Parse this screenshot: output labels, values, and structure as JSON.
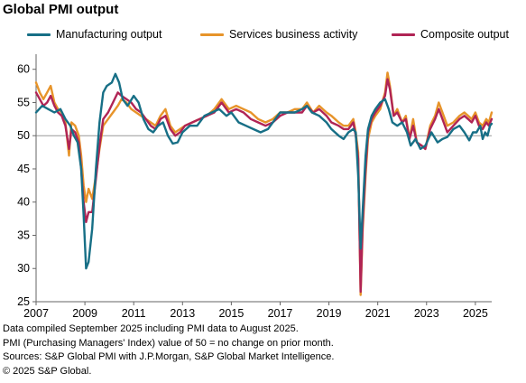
{
  "title": "Global PMI output",
  "footer": {
    "line1": "Data compiled September 2025 including PMI data to August 2025.",
    "line2": "PMI (Purchasing Managers' Index) value of 50 = no change on prior month.",
    "line3": "Sources: S&P Global PMI with J.P.Morgan, S&P Global Market Intelligence.",
    "line4": "© 2025 S&P Global."
  },
  "colors": {
    "manufacturing": "#176f86",
    "services": "#e7942a",
    "composite": "#b02455",
    "axis": "#666666",
    "refline": "#999999"
  },
  "chart_data": {
    "type": "line",
    "title": "Global PMI output",
    "xlabel": "",
    "ylabel": "",
    "xlim": [
      2007.0,
      2025.67
    ],
    "ylim": [
      25,
      62
    ],
    "yticks": [
      25,
      30,
      35,
      40,
      45,
      50,
      55,
      60
    ],
    "xticks": [
      "2007",
      "2009",
      "2011",
      "2013",
      "2015",
      "2017",
      "2019",
      "2021",
      "2023",
      "2025"
    ],
    "reference_line": 50,
    "grid": false,
    "legend_position": "top",
    "series": [
      {
        "name": "Manufacturing output",
        "color": "#176f86",
        "points": [
          [
            2007.0,
            53.5
          ],
          [
            2007.25,
            54.5
          ],
          [
            2007.5,
            54.0
          ],
          [
            2007.75,
            53.5
          ],
          [
            2008.0,
            54.0
          ],
          [
            2008.2,
            52.5
          ],
          [
            2008.4,
            51.5
          ],
          [
            2008.55,
            50.0
          ],
          [
            2008.7,
            49.0
          ],
          [
            2008.85,
            45.0
          ],
          [
            2008.95,
            38.0
          ],
          [
            2009.05,
            30.0
          ],
          [
            2009.15,
            31.0
          ],
          [
            2009.3,
            36.0
          ],
          [
            2009.45,
            45.0
          ],
          [
            2009.6,
            52.0
          ],
          [
            2009.75,
            56.5
          ],
          [
            2009.9,
            57.5
          ],
          [
            2010.1,
            58.0
          ],
          [
            2010.25,
            59.3
          ],
          [
            2010.4,
            58.0
          ],
          [
            2010.55,
            55.5
          ],
          [
            2010.75,
            54.5
          ],
          [
            2011.0,
            56.0
          ],
          [
            2011.2,
            55.0
          ],
          [
            2011.4,
            52.5
          ],
          [
            2011.6,
            51.0
          ],
          [
            2011.8,
            50.5
          ],
          [
            2012.0,
            51.5
          ],
          [
            2012.2,
            52.0
          ],
          [
            2012.4,
            50.0
          ],
          [
            2012.6,
            48.8
          ],
          [
            2012.8,
            49.0
          ],
          [
            2013.0,
            50.5
          ],
          [
            2013.3,
            51.5
          ],
          [
            2013.6,
            51.5
          ],
          [
            2013.9,
            53.0
          ],
          [
            2014.2,
            53.5
          ],
          [
            2014.5,
            54.0
          ],
          [
            2014.8,
            53.0
          ],
          [
            2015.0,
            53.5
          ],
          [
            2015.3,
            52.0
          ],
          [
            2015.6,
            51.5
          ],
          [
            2015.9,
            51.0
          ],
          [
            2016.2,
            50.5
          ],
          [
            2016.5,
            51.0
          ],
          [
            2016.8,
            52.5
          ],
          [
            2017.0,
            53.5
          ],
          [
            2017.3,
            53.5
          ],
          [
            2017.6,
            53.5
          ],
          [
            2017.9,
            54.0
          ],
          [
            2018.1,
            54.5
          ],
          [
            2018.3,
            53.5
          ],
          [
            2018.6,
            53.0
          ],
          [
            2018.9,
            52.0
          ],
          [
            2019.1,
            51.0
          ],
          [
            2019.4,
            50.0
          ],
          [
            2019.6,
            49.5
          ],
          [
            2019.8,
            50.5
          ],
          [
            2020.0,
            51.0
          ],
          [
            2020.1,
            50.5
          ],
          [
            2020.2,
            44.0
          ],
          [
            2020.3,
            33.0
          ],
          [
            2020.38,
            38.5
          ],
          [
            2020.5,
            47.0
          ],
          [
            2020.6,
            51.0
          ],
          [
            2020.75,
            53.0
          ],
          [
            2020.9,
            54.0
          ],
          [
            2021.1,
            55.0
          ],
          [
            2021.3,
            55.5
          ],
          [
            2021.45,
            54.0
          ],
          [
            2021.6,
            52.0
          ],
          [
            2021.8,
            51.5
          ],
          [
            2022.0,
            52.0
          ],
          [
            2022.2,
            50.5
          ],
          [
            2022.35,
            48.5
          ],
          [
            2022.55,
            49.5
          ],
          [
            2022.75,
            48.0
          ],
          [
            2022.95,
            48.5
          ],
          [
            2023.2,
            50.5
          ],
          [
            2023.45,
            49.0
          ],
          [
            2023.65,
            49.5
          ],
          [
            2023.85,
            49.8
          ],
          [
            2024.1,
            51.0
          ],
          [
            2024.35,
            51.5
          ],
          [
            2024.55,
            50.5
          ],
          [
            2024.75,
            49.3
          ],
          [
            2024.9,
            50.5
          ],
          [
            2025.05,
            50.5
          ],
          [
            2025.2,
            51.5
          ],
          [
            2025.3,
            49.5
          ],
          [
            2025.4,
            50.5
          ],
          [
            2025.5,
            50.0
          ],
          [
            2025.6,
            51.5
          ],
          [
            2025.67,
            51.8
          ]
        ]
      },
      {
        "name": "Services business activity",
        "color": "#e7942a",
        "points": [
          [
            2007.0,
            58.0
          ],
          [
            2007.15,
            56.5
          ],
          [
            2007.3,
            55.5
          ],
          [
            2007.45,
            56.5
          ],
          [
            2007.6,
            57.5
          ],
          [
            2007.75,
            55.0
          ],
          [
            2007.9,
            54.0
          ],
          [
            2008.05,
            53.5
          ],
          [
            2008.2,
            52.0
          ],
          [
            2008.35,
            47.0
          ],
          [
            2008.45,
            52.0
          ],
          [
            2008.6,
            51.5
          ],
          [
            2008.75,
            50.0
          ],
          [
            2008.85,
            47.0
          ],
          [
            2008.95,
            42.5
          ],
          [
            2009.05,
            40.0
          ],
          [
            2009.15,
            42.0
          ],
          [
            2009.3,
            40.5
          ],
          [
            2009.45,
            44.0
          ],
          [
            2009.6,
            48.0
          ],
          [
            2009.75,
            51.5
          ],
          [
            2009.95,
            52.5
          ],
          [
            2010.15,
            53.5
          ],
          [
            2010.35,
            54.5
          ],
          [
            2010.5,
            55.5
          ],
          [
            2010.7,
            55.0
          ],
          [
            2010.9,
            54.0
          ],
          [
            2011.1,
            53.5
          ],
          [
            2011.3,
            53.0
          ],
          [
            2011.5,
            52.5
          ],
          [
            2011.7,
            52.0
          ],
          [
            2011.9,
            51.5
          ],
          [
            2012.1,
            53.0
          ],
          [
            2012.3,
            54.0
          ],
          [
            2012.5,
            51.5
          ],
          [
            2012.7,
            50.5
          ],
          [
            2012.9,
            51.0
          ],
          [
            2013.1,
            51.5
          ],
          [
            2013.4,
            52.0
          ],
          [
            2013.7,
            52.5
          ],
          [
            2014.0,
            53.0
          ],
          [
            2014.3,
            54.0
          ],
          [
            2014.6,
            55.5
          ],
          [
            2014.9,
            54.0
          ],
          [
            2015.2,
            54.5
          ],
          [
            2015.5,
            54.0
          ],
          [
            2015.8,
            53.5
          ],
          [
            2016.1,
            52.5
          ],
          [
            2016.4,
            52.0
          ],
          [
            2016.7,
            52.5
          ],
          [
            2017.0,
            53.5
          ],
          [
            2017.3,
            53.5
          ],
          [
            2017.6,
            54.0
          ],
          [
            2017.9,
            54.0
          ],
          [
            2018.1,
            55.0
          ],
          [
            2018.35,
            53.5
          ],
          [
            2018.6,
            54.5
          ],
          [
            2018.9,
            53.5
          ],
          [
            2019.1,
            53.0
          ],
          [
            2019.4,
            52.0
          ],
          [
            2019.6,
            51.5
          ],
          [
            2019.8,
            51.5
          ],
          [
            2020.0,
            52.5
          ],
          [
            2020.1,
            50.5
          ],
          [
            2020.2,
            47.5
          ],
          [
            2020.3,
            26.0
          ],
          [
            2020.38,
            35.5
          ],
          [
            2020.5,
            44.0
          ],
          [
            2020.6,
            49.5
          ],
          [
            2020.75,
            52.0
          ],
          [
            2020.9,
            53.0
          ],
          [
            2021.1,
            54.0
          ],
          [
            2021.3,
            56.5
          ],
          [
            2021.4,
            59.5
          ],
          [
            2021.5,
            57.5
          ],
          [
            2021.65,
            53.0
          ],
          [
            2021.8,
            54.0
          ],
          [
            2022.0,
            52.0
          ],
          [
            2022.15,
            53.0
          ],
          [
            2022.3,
            49.5
          ],
          [
            2022.45,
            52.5
          ],
          [
            2022.6,
            49.0
          ],
          [
            2022.8,
            48.5
          ],
          [
            2022.95,
            48.0
          ],
          [
            2023.15,
            51.5
          ],
          [
            2023.35,
            53.0
          ],
          [
            2023.5,
            55.0
          ],
          [
            2023.65,
            53.5
          ],
          [
            2023.85,
            51.5
          ],
          [
            2024.1,
            52.0
          ],
          [
            2024.35,
            53.0
          ],
          [
            2024.55,
            53.5
          ],
          [
            2024.7,
            53.0
          ],
          [
            2024.85,
            52.5
          ],
          [
            2025.0,
            53.5
          ],
          [
            2025.15,
            52.0
          ],
          [
            2025.3,
            51.5
          ],
          [
            2025.45,
            52.5
          ],
          [
            2025.55,
            52.0
          ],
          [
            2025.67,
            53.5
          ]
        ]
      },
      {
        "name": "Composite output",
        "color": "#b02455",
        "points": [
          [
            2007.0,
            56.5
          ],
          [
            2007.15,
            55.5
          ],
          [
            2007.3,
            54.5
          ],
          [
            2007.45,
            55.0
          ],
          [
            2007.6,
            56.0
          ],
          [
            2007.75,
            54.5
          ],
          [
            2007.9,
            53.5
          ],
          [
            2008.05,
            53.0
          ],
          [
            2008.2,
            51.5
          ],
          [
            2008.35,
            48.0
          ],
          [
            2008.45,
            51.0
          ],
          [
            2008.6,
            50.5
          ],
          [
            2008.75,
            49.0
          ],
          [
            2008.85,
            45.0
          ],
          [
            2008.95,
            40.0
          ],
          [
            2009.05,
            37.0
          ],
          [
            2009.15,
            38.5
          ],
          [
            2009.3,
            38.5
          ],
          [
            2009.45,
            43.5
          ],
          [
            2009.6,
            48.5
          ],
          [
            2009.75,
            52.5
          ],
          [
            2009.95,
            53.5
          ],
          [
            2010.15,
            55.0
          ],
          [
            2010.35,
            56.5
          ],
          [
            2010.5,
            56.0
          ],
          [
            2010.7,
            55.5
          ],
          [
            2010.9,
            55.0
          ],
          [
            2011.1,
            54.0
          ],
          [
            2011.3,
            53.5
          ],
          [
            2011.5,
            52.5
          ],
          [
            2011.7,
            51.5
          ],
          [
            2011.9,
            51.0
          ],
          [
            2012.1,
            52.5
          ],
          [
            2012.3,
            53.0
          ],
          [
            2012.5,
            51.0
          ],
          [
            2012.7,
            50.0
          ],
          [
            2012.9,
            50.5
          ],
          [
            2013.1,
            51.5
          ],
          [
            2013.4,
            52.0
          ],
          [
            2013.7,
            52.5
          ],
          [
            2014.0,
            53.0
          ],
          [
            2014.3,
            53.5
          ],
          [
            2014.6,
            55.0
          ],
          [
            2014.9,
            53.5
          ],
          [
            2015.2,
            54.0
          ],
          [
            2015.5,
            53.5
          ],
          [
            2015.8,
            52.5
          ],
          [
            2016.1,
            52.0
          ],
          [
            2016.4,
            51.5
          ],
          [
            2016.7,
            52.0
          ],
          [
            2017.0,
            53.0
          ],
          [
            2017.3,
            53.5
          ],
          [
            2017.6,
            53.5
          ],
          [
            2017.9,
            53.5
          ],
          [
            2018.1,
            54.5
          ],
          [
            2018.35,
            53.5
          ],
          [
            2018.6,
            54.0
          ],
          [
            2018.9,
            53.0
          ],
          [
            2019.1,
            52.0
          ],
          [
            2019.4,
            51.5
          ],
          [
            2019.6,
            51.0
          ],
          [
            2019.8,
            51.0
          ],
          [
            2020.0,
            52.0
          ],
          [
            2020.1,
            50.0
          ],
          [
            2020.2,
            46.5
          ],
          [
            2020.3,
            26.5
          ],
          [
            2020.38,
            36.5
          ],
          [
            2020.5,
            45.0
          ],
          [
            2020.6,
            50.5
          ],
          [
            2020.75,
            52.5
          ],
          [
            2020.9,
            53.5
          ],
          [
            2021.1,
            54.5
          ],
          [
            2021.3,
            56.0
          ],
          [
            2021.4,
            58.5
          ],
          [
            2021.5,
            57.0
          ],
          [
            2021.65,
            53.0
          ],
          [
            2021.8,
            53.5
          ],
          [
            2022.0,
            52.0
          ],
          [
            2022.15,
            52.5
          ],
          [
            2022.3,
            49.5
          ],
          [
            2022.45,
            51.5
          ],
          [
            2022.6,
            49.0
          ],
          [
            2022.8,
            48.5
          ],
          [
            2022.95,
            48.0
          ],
          [
            2023.15,
            51.0
          ],
          [
            2023.35,
            52.5
          ],
          [
            2023.5,
            54.0
          ],
          [
            2023.65,
            52.5
          ],
          [
            2023.85,
            50.5
          ],
          [
            2024.1,
            51.5
          ],
          [
            2024.35,
            52.5
          ],
          [
            2024.55,
            53.0
          ],
          [
            2024.7,
            52.5
          ],
          [
            2024.85,
            52.0
          ],
          [
            2025.0,
            53.0
          ],
          [
            2025.15,
            51.5
          ],
          [
            2025.3,
            51.0
          ],
          [
            2025.45,
            52.0
          ],
          [
            2025.55,
            51.5
          ],
          [
            2025.67,
            52.5
          ]
        ]
      }
    ]
  }
}
